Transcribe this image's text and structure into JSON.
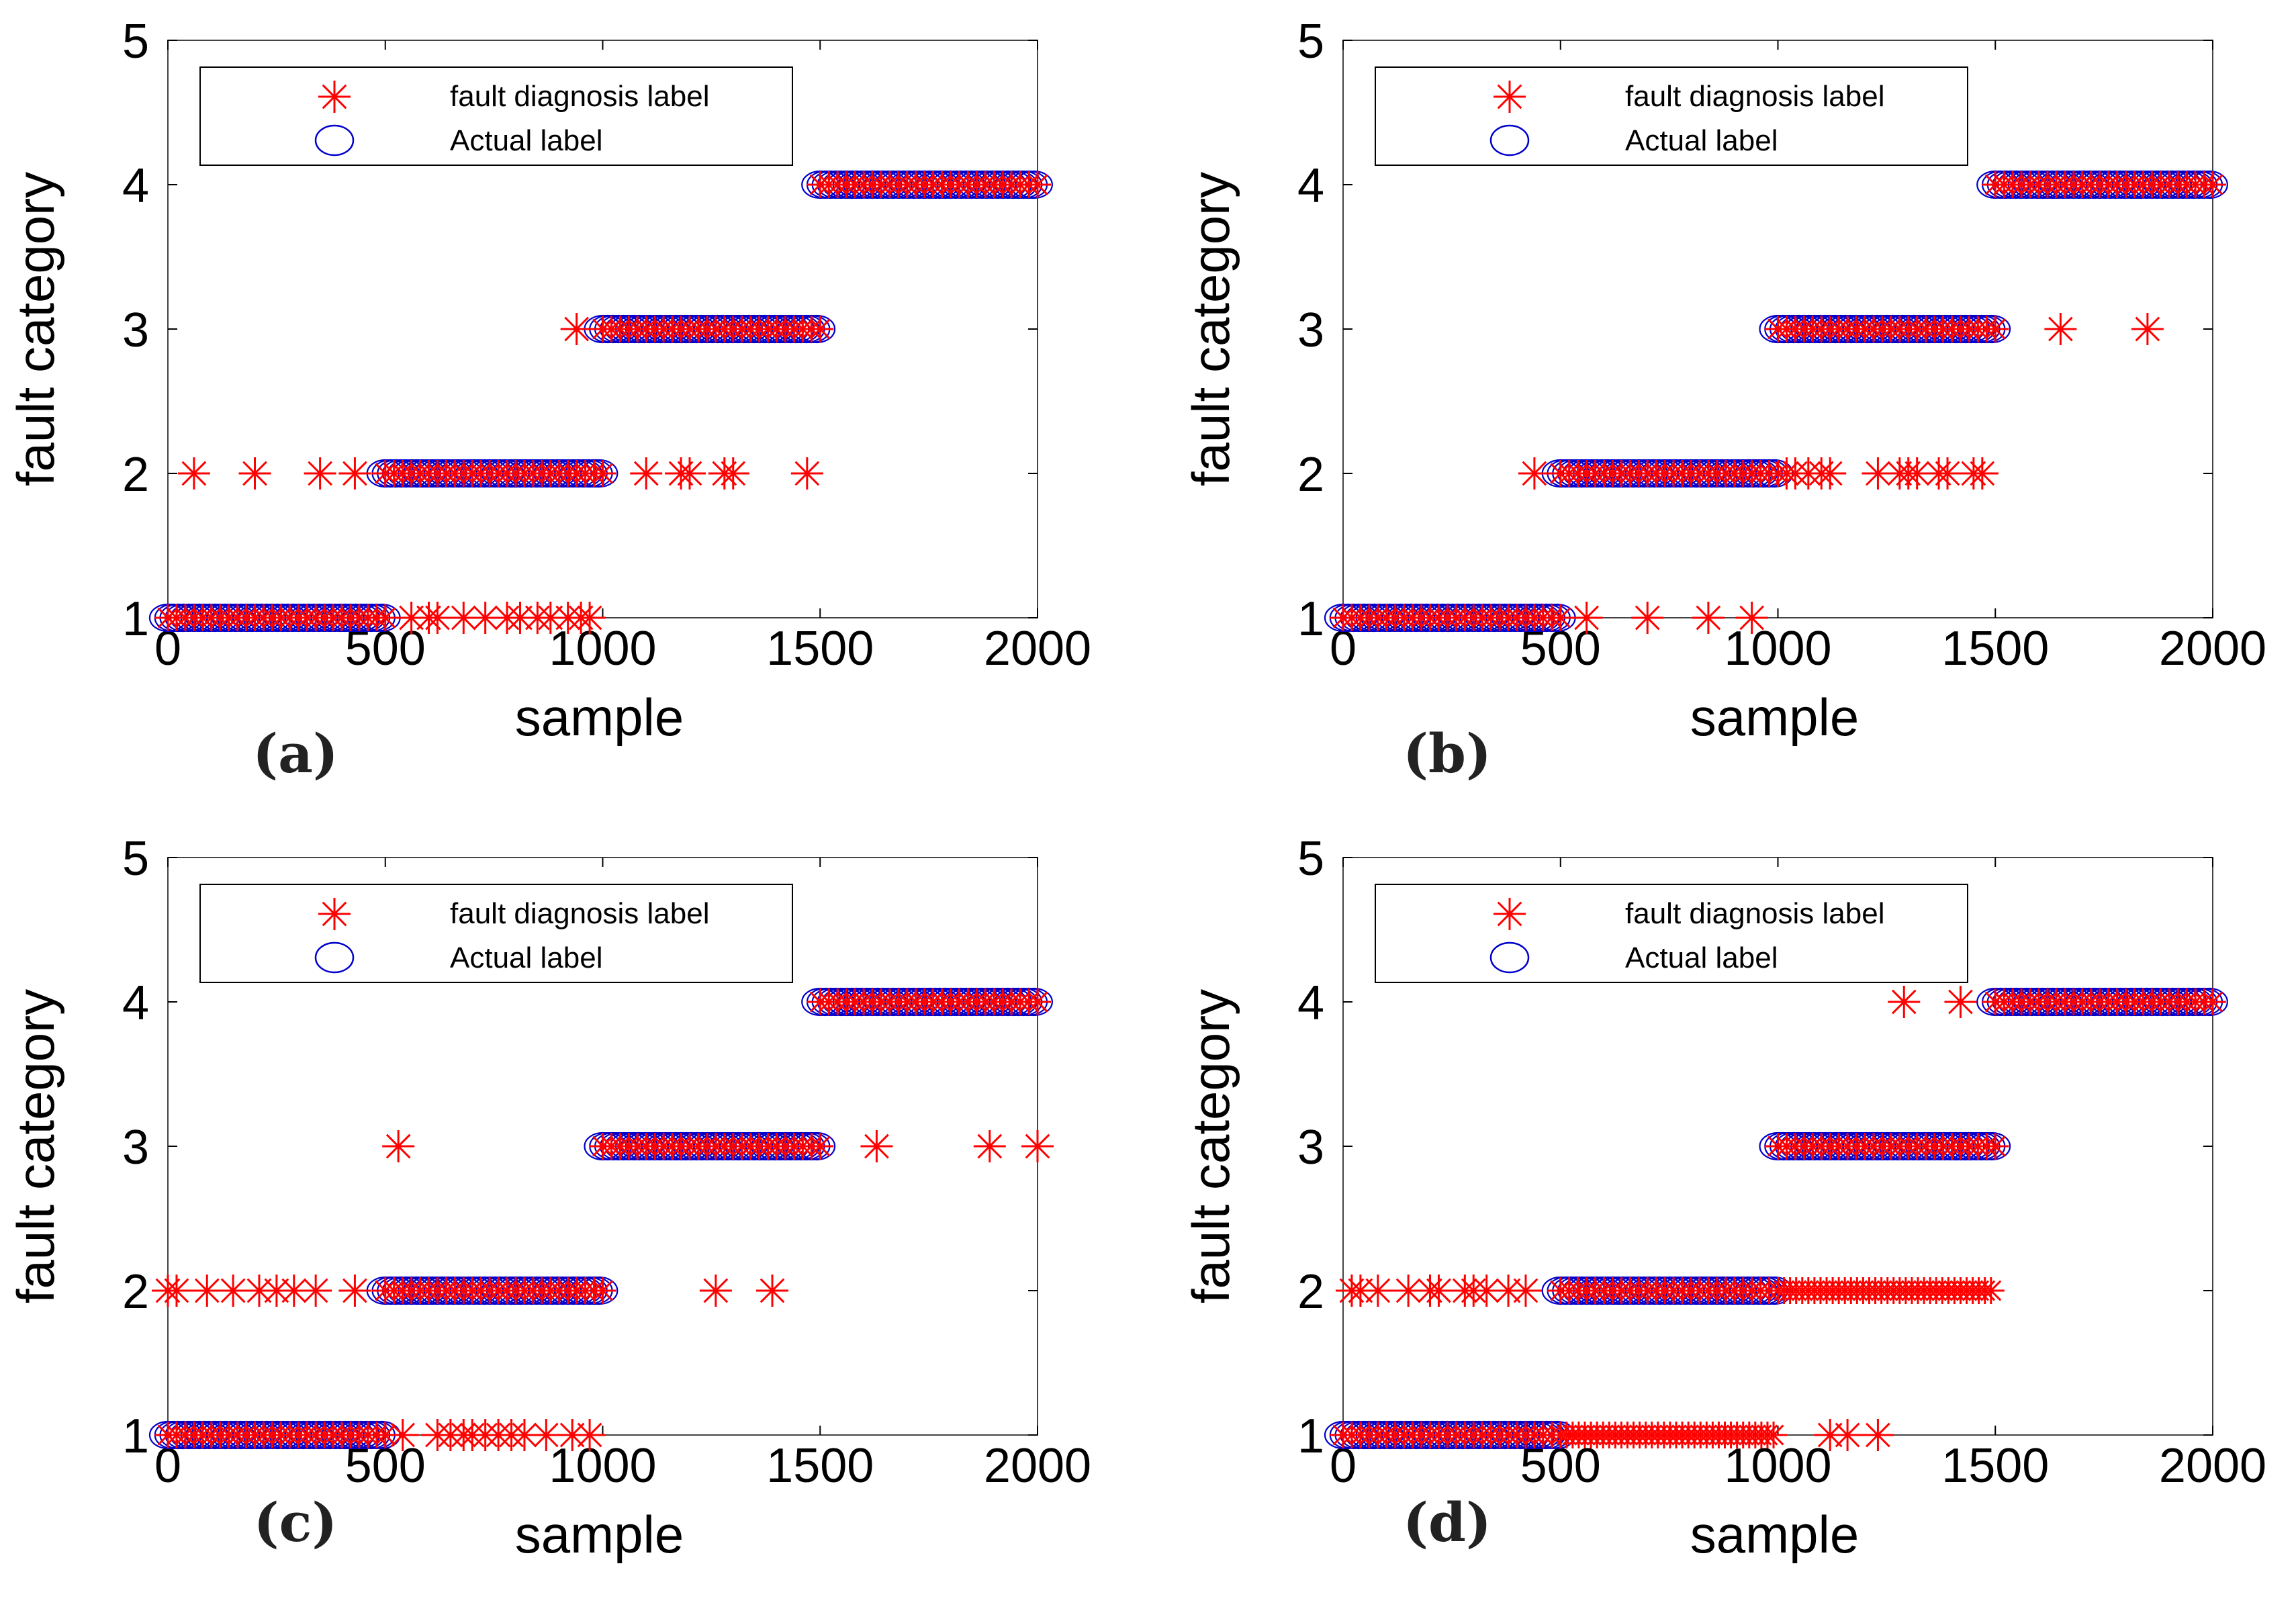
{
  "chart_data": [
    {
      "type": "scatter",
      "panel_label": "(a)",
      "xlabel": "sample",
      "ylabel": "fault category",
      "xlim": [
        0,
        2000
      ],
      "ylim": [
        1,
        5
      ],
      "xticks": [
        "0",
        "500",
        "1000",
        "1500",
        "2000"
      ],
      "yticks": [
        "1",
        "2",
        "3",
        "4",
        "5"
      ],
      "legend": {
        "position": "top-left",
        "entries": [
          "fault diagnosis label",
          "Actual label"
        ]
      },
      "actual_segments": [
        {
          "start": 0,
          "end": 500,
          "label": 1
        },
        {
          "start": 500,
          "end": 1000,
          "label": 2
        },
        {
          "start": 1000,
          "end": 1500,
          "label": 3
        },
        {
          "start": 1500,
          "end": 2000,
          "label": 4
        }
      ],
      "diagnosis_outliers": [
        {
          "x": 60,
          "y": 2
        },
        {
          "x": 200,
          "y": 2
        },
        {
          "x": 350,
          "y": 2
        },
        {
          "x": 430,
          "y": 2
        },
        {
          "x": 940,
          "y": 3
        },
        {
          "x": 1100,
          "y": 2
        },
        {
          "x": 1180,
          "y": 2
        },
        {
          "x": 1200,
          "y": 2
        },
        {
          "x": 1280,
          "y": 2
        },
        {
          "x": 1300,
          "y": 2
        },
        {
          "x": 1470,
          "y": 2
        },
        {
          "x": 560,
          "y": 1
        },
        {
          "x": 600,
          "y": 1
        },
        {
          "x": 620,
          "y": 1
        },
        {
          "x": 680,
          "y": 1
        },
        {
          "x": 730,
          "y": 1
        },
        {
          "x": 780,
          "y": 1
        },
        {
          "x": 810,
          "y": 1
        },
        {
          "x": 850,
          "y": 1
        },
        {
          "x": 880,
          "y": 1
        },
        {
          "x": 920,
          "y": 1
        },
        {
          "x": 950,
          "y": 1
        },
        {
          "x": 970,
          "y": 1
        }
      ]
    },
    {
      "type": "scatter",
      "panel_label": "(b)",
      "xlabel": "sample",
      "ylabel": "fault category",
      "xlim": [
        0,
        2000
      ],
      "ylim": [
        1,
        5
      ],
      "xticks": [
        "0",
        "500",
        "1000",
        "1500",
        "2000"
      ],
      "yticks": [
        "1",
        "2",
        "3",
        "4",
        "5"
      ],
      "legend": {
        "position": "top-left",
        "entries": [
          "fault diagnosis label",
          "Actual label"
        ]
      },
      "actual_segments": [
        {
          "start": 0,
          "end": 500,
          "label": 1
        },
        {
          "start": 500,
          "end": 1000,
          "label": 2
        },
        {
          "start": 1000,
          "end": 1500,
          "label": 3
        },
        {
          "start": 1500,
          "end": 2000,
          "label": 4
        }
      ],
      "diagnosis_outliers": [
        {
          "x": 560,
          "y": 1
        },
        {
          "x": 700,
          "y": 1
        },
        {
          "x": 840,
          "y": 1
        },
        {
          "x": 940,
          "y": 1
        },
        {
          "x": 440,
          "y": 2
        },
        {
          "x": 1020,
          "y": 2
        },
        {
          "x": 1040,
          "y": 2
        },
        {
          "x": 1070,
          "y": 2
        },
        {
          "x": 1100,
          "y": 2
        },
        {
          "x": 1120,
          "y": 2
        },
        {
          "x": 1230,
          "y": 2
        },
        {
          "x": 1280,
          "y": 2
        },
        {
          "x": 1300,
          "y": 2
        },
        {
          "x": 1320,
          "y": 2
        },
        {
          "x": 1370,
          "y": 2
        },
        {
          "x": 1390,
          "y": 2
        },
        {
          "x": 1450,
          "y": 2
        },
        {
          "x": 1470,
          "y": 2
        },
        {
          "x": 1650,
          "y": 3
        },
        {
          "x": 1850,
          "y": 3
        }
      ]
    },
    {
      "type": "scatter",
      "panel_label": "(c)",
      "xlabel": "sample",
      "ylabel": "fault category",
      "xlim": [
        0,
        2000
      ],
      "ylim": [
        1,
        5
      ],
      "xticks": [
        "0",
        "500",
        "1000",
        "1500",
        "2000"
      ],
      "yticks": [
        "1",
        "2",
        "3",
        "4",
        "5"
      ],
      "legend": {
        "position": "top-left",
        "entries": [
          "fault diagnosis label",
          "Actual label"
        ]
      },
      "actual_segments": [
        {
          "start": 0,
          "end": 500,
          "label": 1
        },
        {
          "start": 500,
          "end": 1000,
          "label": 2
        },
        {
          "start": 1000,
          "end": 1500,
          "label": 3
        },
        {
          "start": 1500,
          "end": 2000,
          "label": 4
        }
      ],
      "diagnosis_outliers": [
        {
          "x": 0,
          "y": 2
        },
        {
          "x": 20,
          "y": 2
        },
        {
          "x": 90,
          "y": 2
        },
        {
          "x": 150,
          "y": 2
        },
        {
          "x": 210,
          "y": 2
        },
        {
          "x": 250,
          "y": 2
        },
        {
          "x": 290,
          "y": 2
        },
        {
          "x": 340,
          "y": 2
        },
        {
          "x": 430,
          "y": 2
        },
        {
          "x": 530,
          "y": 3
        },
        {
          "x": 540,
          "y": 1
        },
        {
          "x": 620,
          "y": 1
        },
        {
          "x": 650,
          "y": 1
        },
        {
          "x": 680,
          "y": 1
        },
        {
          "x": 700,
          "y": 1
        },
        {
          "x": 730,
          "y": 1
        },
        {
          "x": 760,
          "y": 1
        },
        {
          "x": 790,
          "y": 1
        },
        {
          "x": 820,
          "y": 1
        },
        {
          "x": 870,
          "y": 1
        },
        {
          "x": 930,
          "y": 1
        },
        {
          "x": 970,
          "y": 1
        },
        {
          "x": 1260,
          "y": 2
        },
        {
          "x": 1390,
          "y": 2
        },
        {
          "x": 1630,
          "y": 3
        },
        {
          "x": 1890,
          "y": 3
        },
        {
          "x": 2000,
          "y": 3
        }
      ]
    },
    {
      "type": "scatter",
      "panel_label": "(d)",
      "xlabel": "sample",
      "ylabel": "fault category",
      "xlim": [
        0,
        2000
      ],
      "ylim": [
        1,
        5
      ],
      "xticks": [
        "0",
        "500",
        "1000",
        "1500",
        "2000"
      ],
      "yticks": [
        "1",
        "2",
        "3",
        "4",
        "5"
      ],
      "legend": {
        "position": "top-left",
        "entries": [
          "fault diagnosis label",
          "Actual label"
        ]
      },
      "actual_segments": [
        {
          "start": 0,
          "end": 500,
          "label": 1
        },
        {
          "start": 500,
          "end": 1000,
          "label": 2
        },
        {
          "start": 1000,
          "end": 1500,
          "label": 3
        },
        {
          "start": 1500,
          "end": 2000,
          "label": 4
        }
      ],
      "diagnosis_outliers": [
        {
          "x": 20,
          "y": 2
        },
        {
          "x": 40,
          "y": 2
        },
        {
          "x": 80,
          "y": 2
        },
        {
          "x": 150,
          "y": 2
        },
        {
          "x": 200,
          "y": 2
        },
        {
          "x": 220,
          "y": 2
        },
        {
          "x": 280,
          "y": 2
        },
        {
          "x": 300,
          "y": 2
        },
        {
          "x": 330,
          "y": 2
        },
        {
          "x": 380,
          "y": 2
        },
        {
          "x": 420,
          "y": 2
        },
        {
          "x": 1290,
          "y": 4
        },
        {
          "x": 1420,
          "y": 4
        },
        {
          "x": 1120,
          "y": 1
        },
        {
          "x": 1160,
          "y": 1
        },
        {
          "x": 1230,
          "y": 1
        }
      ],
      "diagnosis_dense_segments": [
        {
          "start": 500,
          "end": 1000,
          "label": 1
        },
        {
          "start": 1000,
          "end": 1500,
          "label": 2
        }
      ]
    }
  ],
  "colors": {
    "diagnosis_marker": "#ff0000",
    "actual_marker": "#0000cc",
    "axis": "#000000"
  }
}
